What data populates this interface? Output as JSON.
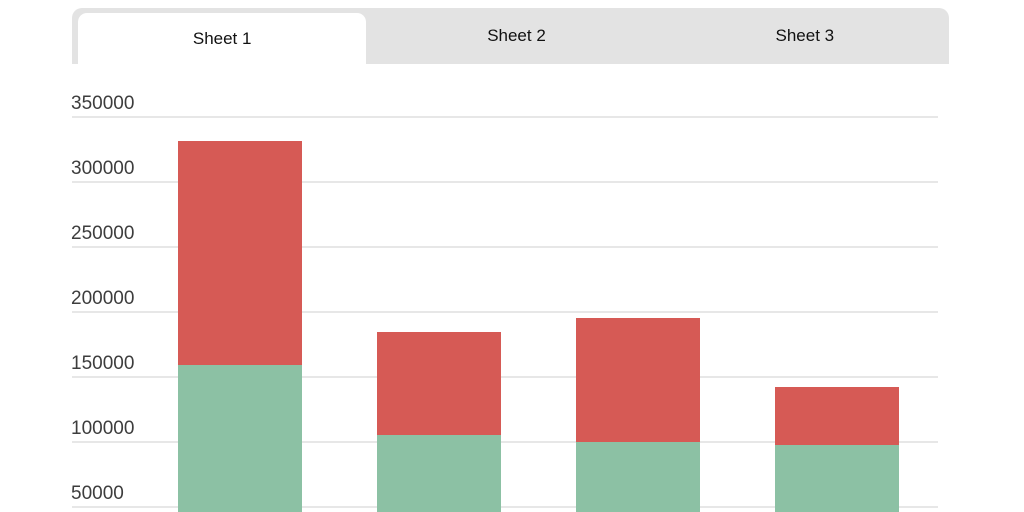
{
  "tabs": [
    {
      "label": "Sheet 1",
      "active": true
    },
    {
      "label": "Sheet 2",
      "active": false
    },
    {
      "label": "Sheet 3",
      "active": false
    }
  ],
  "chart_data": {
    "type": "bar",
    "stacked": true,
    "title": "",
    "xlabel": "",
    "ylabel": "",
    "categories": [
      "",
      "",
      "",
      ""
    ],
    "series": [
      {
        "name": "bottom-green",
        "color": "#8cc1a4",
        "values": [
          159000,
          105000,
          100000,
          97000
        ]
      },
      {
        "name": "top-red",
        "color": "#d65a55",
        "values": [
          172000,
          79000,
          95000,
          45000
        ]
      }
    ],
    "totals": [
      331000,
      184000,
      195000,
      142000
    ],
    "y_ticks": [
      350000,
      300000,
      250000,
      200000,
      150000,
      100000,
      50000
    ],
    "y_tick_step": 50000,
    "grid": true,
    "legend": "none",
    "x_axis_labels_visible": false,
    "bottom_cropped": true
  },
  "colors": {
    "tab_bar_bg": "#e3e3e3",
    "active_tab_bg": "#ffffff",
    "gridline": "#e7e7e7",
    "axis_label": "#3d3d3d",
    "bar_green": "#8cc1a4",
    "bar_red": "#d65a55"
  }
}
